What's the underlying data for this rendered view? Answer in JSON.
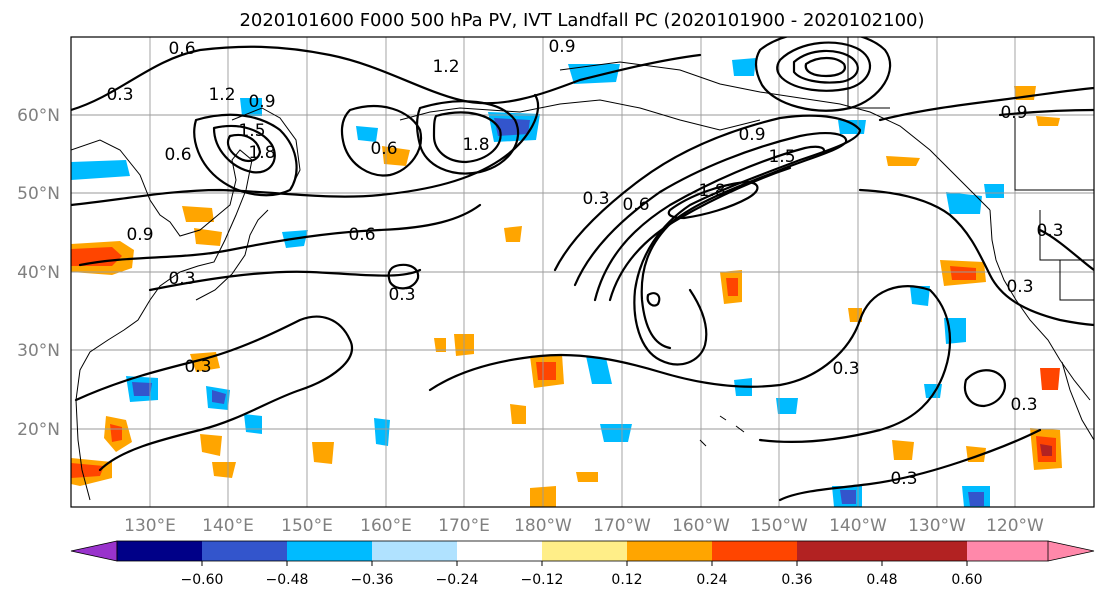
{
  "title": "2020101600 F000 500 hPa PV, IVT Landfall PC (2020101900 - 2020102100)",
  "map": {
    "lon_labels": [
      "130°E",
      "140°E",
      "150°E",
      "160°E",
      "170°E",
      "180°W",
      "170°W",
      "160°W",
      "150°W",
      "140°W",
      "130°W",
      "120°W"
    ],
    "lat_labels": [
      "60°N",
      "50°N",
      "40°N",
      "30°N",
      "20°N"
    ],
    "grid": true
  },
  "colorbar": {
    "colors": [
      "#9933cc",
      "#000088",
      "#3355cc",
      "#00bbff",
      "#b0e2ff",
      "#ffffff",
      "#ffee88",
      "#ffa500",
      "#ff4500",
      "#b22222",
      "#ff88aa"
    ],
    "tick_labels": [
      "−0.60",
      "−0.48",
      "−0.36",
      "−0.24",
      "−0.12",
      "0.12",
      "0.24",
      "0.36",
      "0.48",
      "0.60"
    ],
    "extend": "both"
  },
  "contour_labels": [
    "0.6",
    "0.3",
    "0.9",
    "1.2",
    "1.5",
    "1.8",
    "0.6",
    "0.6",
    "1.8",
    "0.6",
    "0.9",
    "0.3",
    "0.3",
    "0.3",
    "0.6",
    "0.9",
    "1.2",
    "1.5",
    "1.8",
    "0.9",
    "0.3",
    "0.3",
    "0.3",
    "0.3",
    "0.3",
    "0.9",
    "0.3"
  ]
}
